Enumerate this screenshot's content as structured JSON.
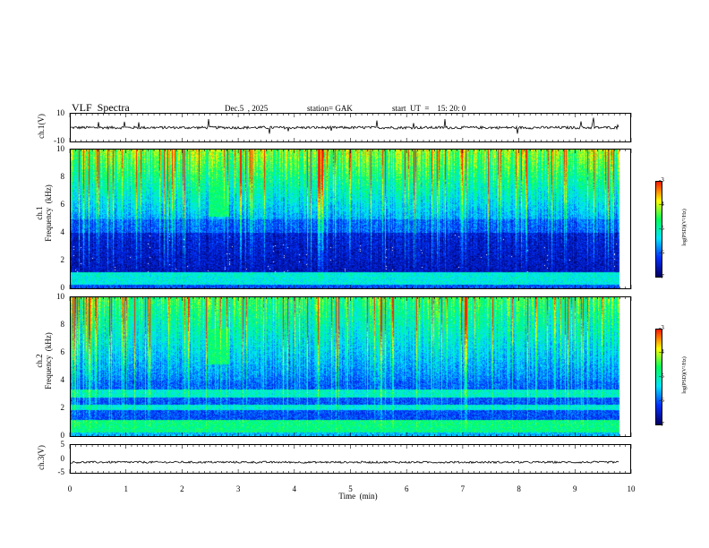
{
  "header": {
    "title": "VLF  Spectra",
    "date": "Dec.5  , 2025",
    "station": "station= GAK",
    "start": "start  UT  =    15: 20: 0"
  },
  "chart_data": [
    {
      "type": "line",
      "name": "ch1-waveform",
      "ylabel": "ch.1(V)",
      "ylim": [
        -10,
        10
      ],
      "yticks": [
        "10",
        "-10"
      ],
      "baseline": 0
    },
    {
      "type": "heatmap",
      "name": "ch1-spectrogram",
      "ylabel": "ch.1\nFrequency  (kHz)",
      "ylim": [
        0,
        10
      ],
      "yticks": [
        "10",
        "8",
        "6",
        "4",
        "2",
        "0"
      ],
      "colorbar": {
        "label": "log(PSD)(V²/Hz)",
        "range": [
          -7,
          -3
        ],
        "ticks": [
          "-3",
          "-4",
          "-5",
          "-6",
          "-7"
        ]
      }
    },
    {
      "type": "heatmap",
      "name": "ch2-spectrogram",
      "ylabel": "ch.2\nFrequency  (kHz)",
      "ylim": [
        0,
        10
      ],
      "yticks": [
        "10",
        "8",
        "6",
        "4",
        "2",
        "0"
      ],
      "colorbar": {
        "label": "log(PSD)(V²/Hz)",
        "range": [
          -7,
          -3
        ],
        "ticks": [
          "-3",
          "-4",
          "-5",
          "-6",
          "-7"
        ]
      }
    },
    {
      "type": "line",
      "name": "ch3-waveform",
      "ylabel": "ch.3(V)",
      "ylim": [
        -5,
        5
      ],
      "yticks": [
        "5",
        "0",
        "-5"
      ],
      "baseline": -1.2
    }
  ],
  "xaxis": {
    "label": "Time  (min)",
    "range": [
      0,
      10
    ],
    "ticks": [
      "0",
      "1",
      "2",
      "3",
      "4",
      "5",
      "6",
      "7",
      "8",
      "9",
      "10"
    ]
  },
  "colors": {
    "deep": "#000066",
    "blue": "#0030ff",
    "cyan": "#00e5ff",
    "green": "#00ff60",
    "yellow": "#ffff00",
    "red": "#ff2000"
  }
}
